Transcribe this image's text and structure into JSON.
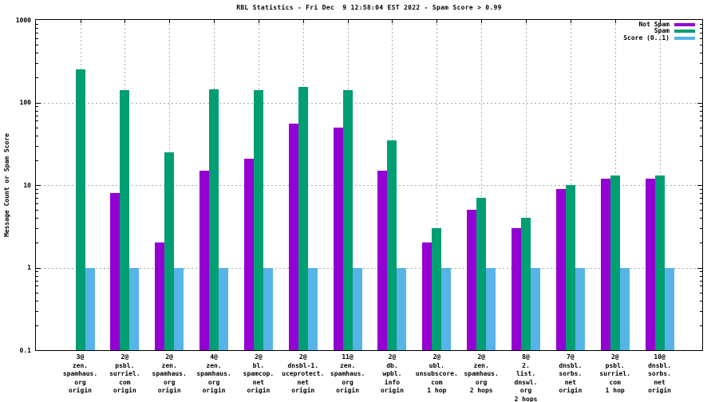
{
  "chart_data": {
    "type": "bar",
    "title": "RBL Statistics - Fri Dec  9 12:58:04 EST 2022 - Spam Score > 0.99",
    "ylabel": "Message Count or Spam Score",
    "yscale": "log",
    "ylim": [
      0.1,
      1000
    ],
    "yticks": [
      {
        "label": "1000",
        "value": 1000
      },
      {
        "label": "100",
        "value": 100
      },
      {
        "label": "10",
        "value": 10
      },
      {
        "label": "1",
        "value": 1
      },
      {
        "label": "0.1",
        "value": 0.1
      }
    ],
    "grid": true,
    "grid_color": "#a8a8a8",
    "axis_color": "#000000",
    "legend_position": "top-right",
    "categories": [
      [
        "3@",
        "zen.",
        "spamhaus.",
        "org",
        "origin"
      ],
      [
        "2@",
        "psbl.",
        "surriel.",
        "com",
        "origin"
      ],
      [
        "2@",
        "zen.",
        "spamhaus.",
        "org",
        "origin"
      ],
      [
        "4@",
        "zen.",
        "spamhaus.",
        "org",
        "origin"
      ],
      [
        "2@",
        "bl.",
        "spamcop.",
        "net",
        "origin"
      ],
      [
        "2@",
        "dnsbl-1.",
        "uceprotect.",
        "net",
        "origin"
      ],
      [
        "11@",
        "zen.",
        "spamhaus.",
        "org",
        "origin"
      ],
      [
        "2@",
        "db.",
        "wpbl.",
        "info",
        "origin"
      ],
      [
        "2@",
        "ubl.",
        "unsubscore.",
        "com",
        "1 hop"
      ],
      [
        "2@",
        "zen.",
        "spamhaus.",
        "org",
        "2 hops"
      ],
      [
        "8@",
        "2.",
        "list.",
        "dnswl.",
        "org",
        "2 hops"
      ],
      [
        "7@",
        "dnsbl.",
        "sorbs.",
        "net",
        "origin"
      ],
      [
        "2@",
        "psbl.",
        "surriel.",
        "com",
        "1 hop"
      ],
      [
        "10@",
        "dnsbl.",
        "sorbs.",
        "net",
        "origin"
      ]
    ],
    "series": [
      {
        "name": "Not Spam",
        "color": "#9400d3",
        "values": [
          null,
          8,
          2,
          15,
          21,
          55,
          50,
          15,
          2,
          5,
          3,
          9,
          12,
          12
        ]
      },
      {
        "name": "Spam",
        "color": "#009e73",
        "values": [
          250,
          140,
          25,
          145,
          140,
          155,
          140,
          35,
          3,
          7,
          4,
          10,
          13,
          13
        ]
      },
      {
        "name": "Score (0..1)",
        "color": "#56b4e9",
        "values": [
          1,
          1,
          1,
          1,
          1,
          1,
          1,
          1,
          1,
          1,
          1,
          1,
          1,
          1
        ]
      }
    ]
  }
}
